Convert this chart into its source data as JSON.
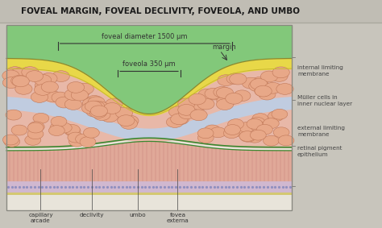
{
  "title": "FOVEAL MARGIN, FOVEAL DECLIVITY, FOVEOLA, AND UMBO",
  "title_fontsize": 7.5,
  "bg_color": "#c8c5bc",
  "title_bg": "#c0bdb4",
  "diagram_bg": "#e8e4da",
  "green_top": "#82c87a",
  "yellow_layer": "#e8d848",
  "pink_layer": "#e8b8a8",
  "blue_layer": "#c0cce0",
  "outer_pink": "#e0a898",
  "rpe_color": "#d0b8d0",
  "rpe_line_color": "#b090b8",
  "green_line": "#3a8830",
  "cell_face": "#e8a888",
  "cell_edge": "#c07858",
  "right_label_color": "#444444",
  "bottom_label_color": "#333333",
  "annotation_color": "#333333",
  "right_labels": [
    "internal limiting\nmembrane",
    "Müller cells in\ninner nuclear layer",
    "external limiting\nmembrane",
    "retinal pigment\nepithelium"
  ],
  "bottom_labels": [
    [
      "capillary\narcade",
      0.12
    ],
    [
      "declivity",
      0.3
    ],
    [
      "umbo",
      0.46
    ],
    [
      "fovea\nexterna",
      0.6
    ]
  ],
  "foveal_diameter_text": "foveal diameter 1500 μm",
  "foveola_text": "foveola 350 μm",
  "margin_text": "margin"
}
